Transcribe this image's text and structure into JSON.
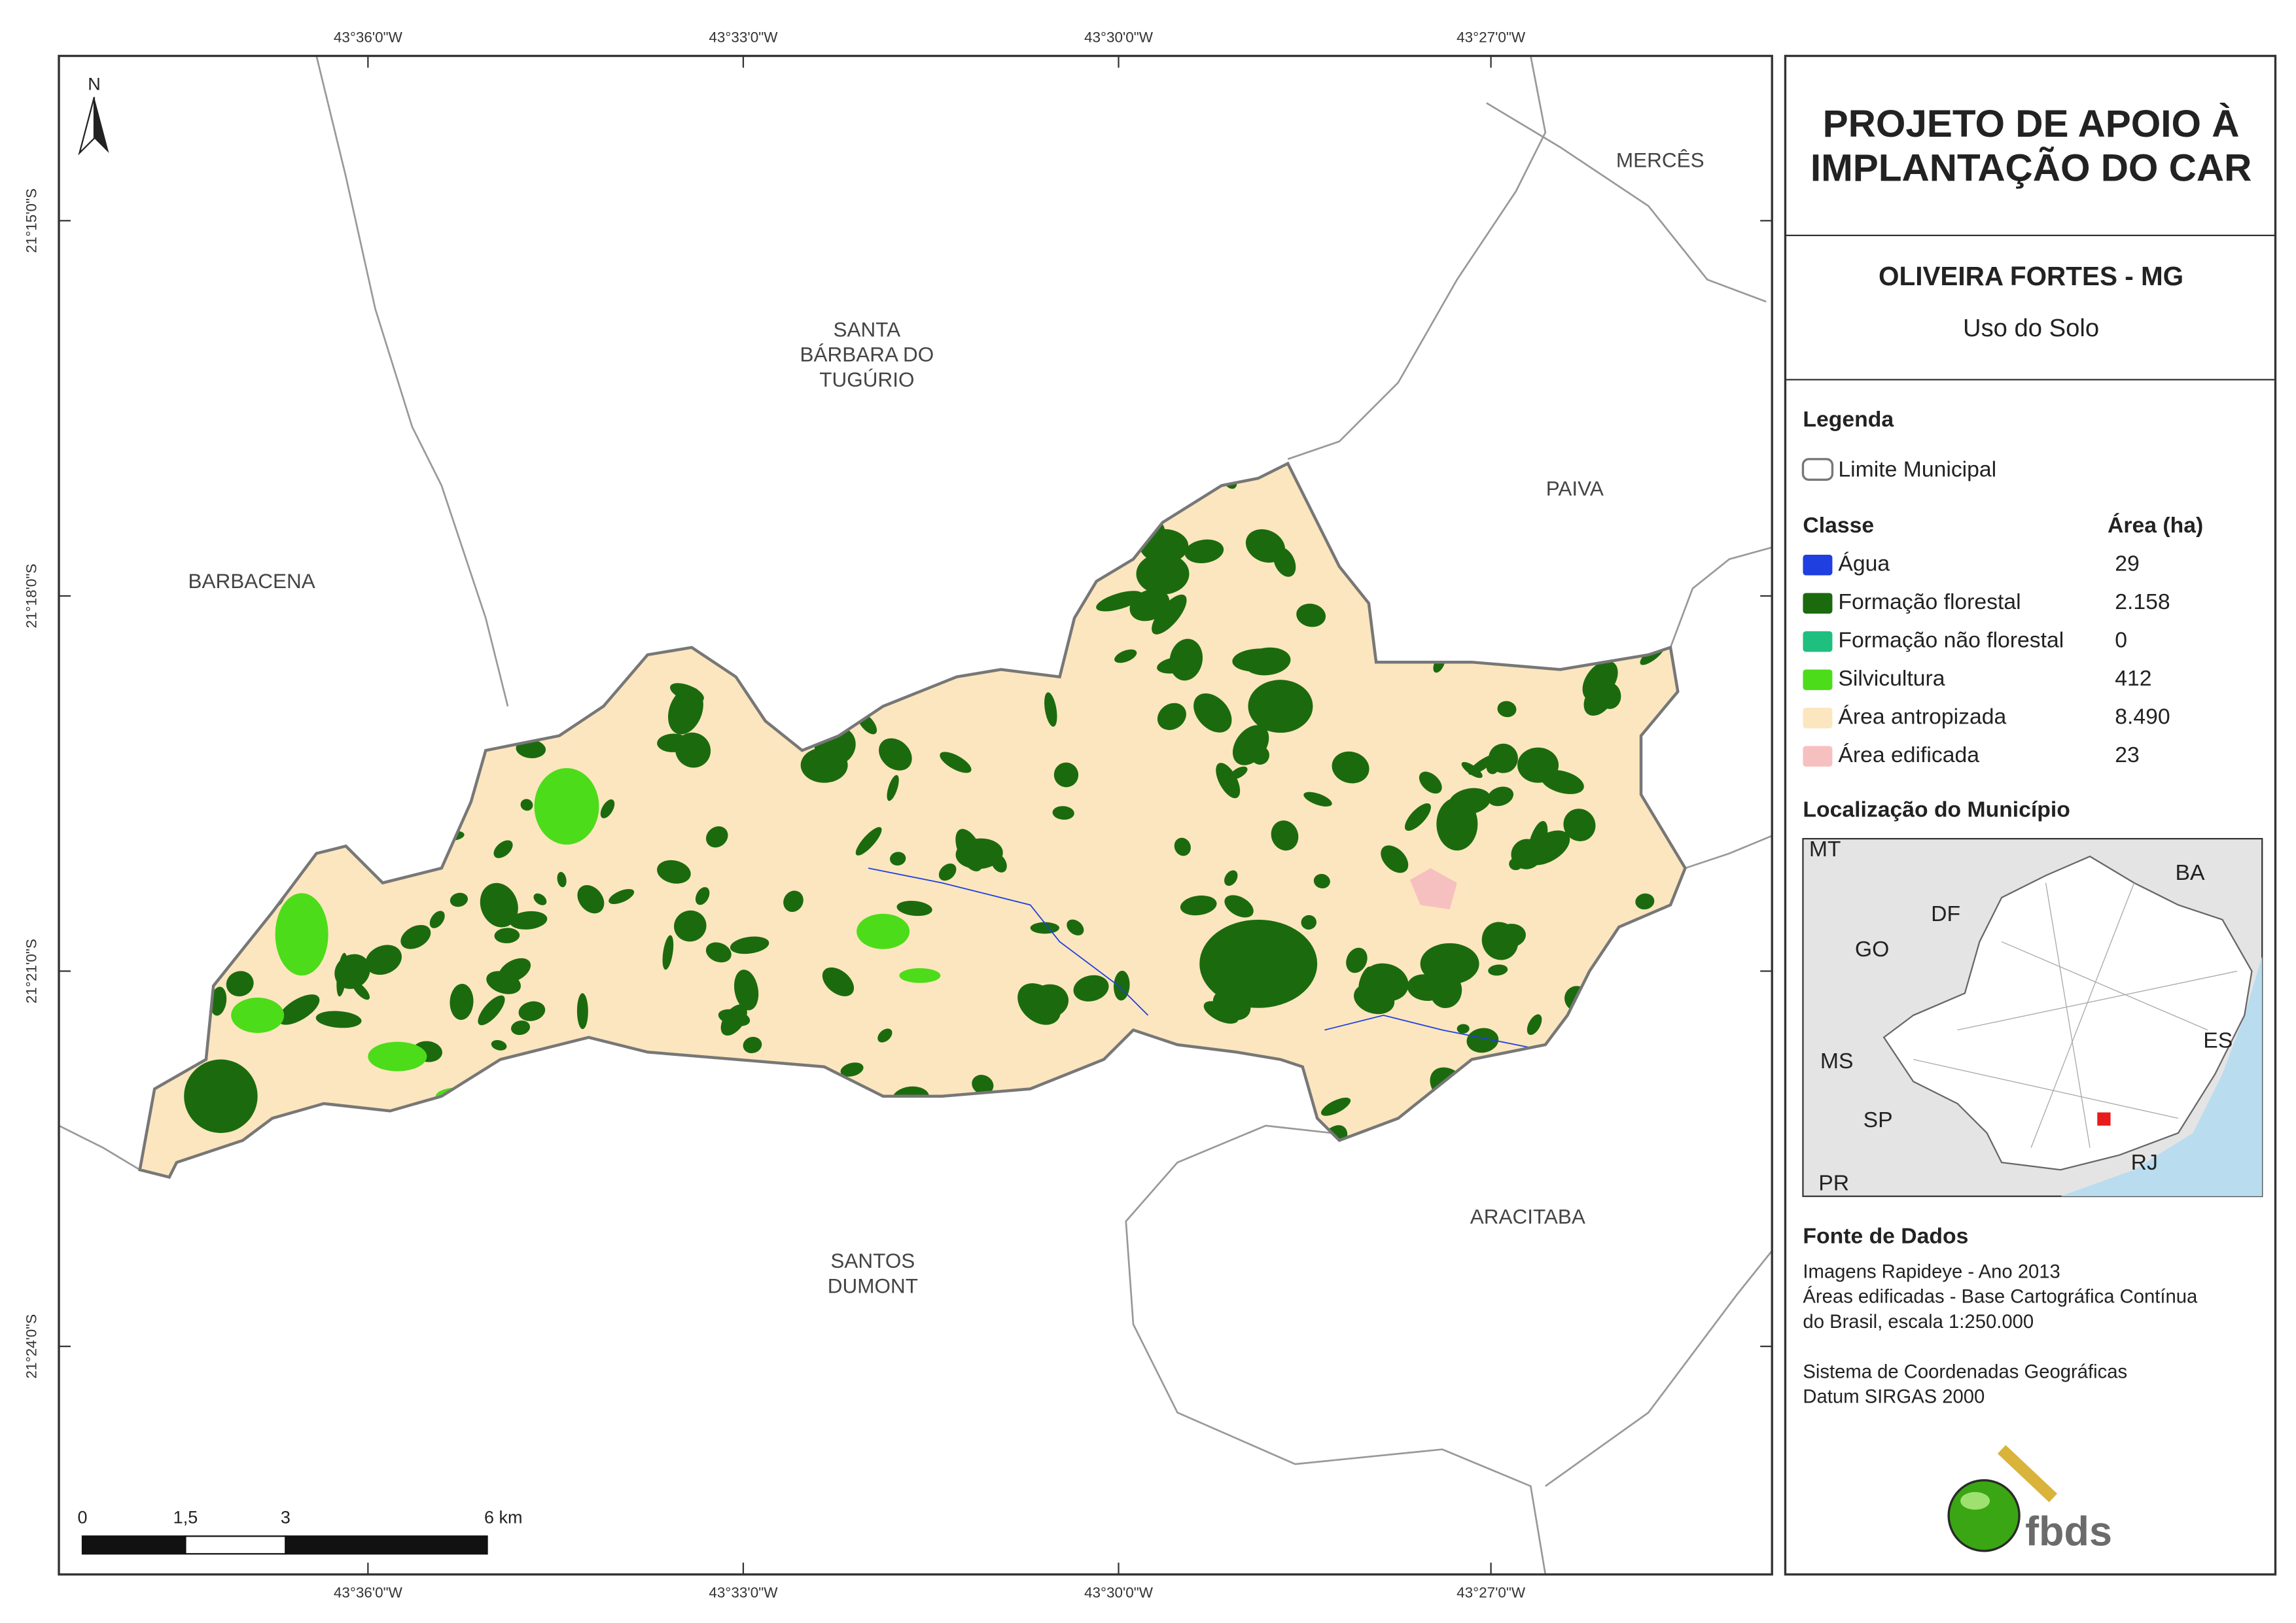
{
  "header": {
    "title_lines": [
      "PROJETO DE APOIO À",
      "IMPLANTAÇÃO DO CAR"
    ],
    "municipality": "OLIVEIRA FORTES - MG",
    "subtitle": "Uso do Solo"
  },
  "legend": {
    "title": "Legenda",
    "boundary": "Limite Municipal",
    "class_header": "Classe",
    "area_header": "Área (ha)",
    "classes": [
      {
        "name": "Água",
        "area": "29",
        "color": "#1f3fe0"
      },
      {
        "name": "Formação florestal",
        "area": "2.158",
        "color": "#1b6b0e"
      },
      {
        "name": "Formação não florestal",
        "area": "0",
        "color": "#1fbf80"
      },
      {
        "name": "Silvicultura",
        "area": "412",
        "color": "#4cdc1a"
      },
      {
        "name": "Área antropizada",
        "area": "8.490",
        "color": "#fce6bf"
      },
      {
        "name": "Área edificada",
        "area": "23",
        "color": "#f7c0c0"
      }
    ]
  },
  "location": {
    "title": "Localização do Município",
    "labels": [
      "MT",
      "BA",
      "DF",
      "GO",
      "MS",
      "ES",
      "SP",
      "RJ",
      "PR"
    ]
  },
  "sources": {
    "title": "Fonte de Dados",
    "lines": [
      "Imagens Rapideye - Ano 2013",
      "Áreas edificadas - Base Cartográfica Contínua",
      "do Brasil, escala 1:250.000",
      "Sistema de Coordenadas Geográficas",
      "Datum SIRGAS 2000"
    ]
  },
  "map": {
    "north": "N",
    "places": [
      {
        "lines": [
          "MERCÊS"
        ]
      },
      {
        "lines": [
          "SANTA",
          "BÁRBARA DO",
          "TUGÚRIO"
        ]
      },
      {
        "lines": [
          "PAIVA"
        ]
      },
      {
        "lines": [
          "BARBACENA"
        ]
      },
      {
        "lines": [
          "SANTOS",
          "DUMONT"
        ]
      },
      {
        "lines": [
          "ARACITABA"
        ]
      }
    ]
  },
  "grid": {
    "longitudes": [
      "43°36'0\"W",
      "43°33'0\"W",
      "43°30'0\"W",
      "43°27'0\"W"
    ],
    "latitudes": [
      "21°15'0\"S",
      "21°18'0\"S",
      "21°21'0\"S",
      "21°24'0\"S"
    ]
  },
  "scale_bar": {
    "labels": [
      "0",
      "1,5",
      "3",
      "6 km"
    ]
  },
  "logo": "fbds"
}
